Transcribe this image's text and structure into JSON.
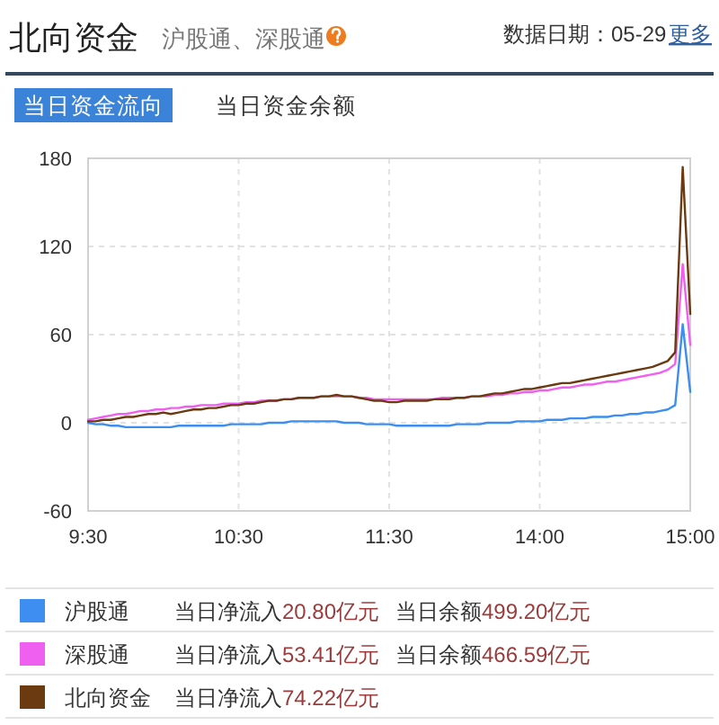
{
  "chart_data": {
    "type": "line",
    "title": "北向资金",
    "subtitle": "沪股通、深股通",
    "categories": [
      "9:30",
      null,
      null,
      null,
      null,
      null,
      null,
      null,
      null,
      null,
      null,
      null,
      null,
      null,
      null,
      null,
      null,
      null,
      null,
      null,
      "10:30",
      null,
      null,
      null,
      null,
      null,
      null,
      null,
      null,
      null,
      null,
      null,
      null,
      null,
      null,
      null,
      null,
      null,
      null,
      null,
      "11:30",
      null,
      null,
      null,
      null,
      null,
      null,
      null,
      null,
      null,
      null,
      null,
      null,
      null,
      null,
      null,
      null,
      null,
      null,
      null,
      "14:00",
      null,
      null,
      null,
      null,
      null,
      null,
      null,
      null,
      null,
      null,
      null,
      null,
      null,
      null,
      null,
      null,
      null,
      null,
      null,
      "15:00"
    ],
    "ylim": [
      -60,
      180
    ],
    "yticks": [
      -60,
      0,
      60,
      120,
      180
    ],
    "grid": true,
    "legend": "bottom",
    "series": [
      {
        "name": "沪股通",
        "color": "#3d8ef0",
        "values": [
          0,
          -1,
          -1,
          -2,
          -2,
          -3,
          -3,
          -3,
          -3,
          -3,
          -3,
          -3,
          -2,
          -2,
          -2,
          -2,
          -2,
          -2,
          -2,
          -1,
          -1,
          -1,
          -1,
          -1,
          0,
          0,
          0,
          1,
          1,
          1,
          1,
          1,
          1,
          1,
          0,
          0,
          0,
          -1,
          -1,
          -1,
          -1,
          -2,
          -2,
          -2,
          -2,
          -2,
          -2,
          -2,
          -2,
          -1,
          -1,
          -1,
          -1,
          0,
          0,
          0,
          0,
          1,
          1,
          1,
          1,
          2,
          2,
          2,
          3,
          3,
          3,
          4,
          4,
          4,
          5,
          5,
          6,
          6,
          7,
          7,
          8,
          9,
          12,
          67,
          21
        ]
      },
      {
        "name": "深股通",
        "color": "#f060f0",
        "values": [
          2,
          3,
          4,
          5,
          6,
          6,
          7,
          8,
          8,
          9,
          9,
          10,
          10,
          11,
          11,
          12,
          12,
          12,
          13,
          13,
          13,
          14,
          14,
          15,
          15,
          15,
          16,
          16,
          17,
          17,
          17,
          18,
          18,
          18,
          18,
          18,
          17,
          17,
          16,
          16,
          16,
          16,
          16,
          16,
          16,
          16,
          16,
          17,
          17,
          17,
          17,
          18,
          18,
          18,
          19,
          19,
          20,
          20,
          21,
          21,
          22,
          22,
          23,
          24,
          24,
          25,
          26,
          26,
          27,
          28,
          28,
          29,
          30,
          31,
          32,
          33,
          34,
          36,
          40,
          108,
          53
        ]
      },
      {
        "name": "北向资金",
        "color": "#6b3a10",
        "values": [
          1,
          1,
          2,
          2,
          3,
          4,
          4,
          5,
          6,
          6,
          7,
          6,
          7,
          8,
          9,
          9,
          10,
          10,
          11,
          12,
          12,
          13,
          13,
          14,
          15,
          15,
          16,
          16,
          17,
          17,
          17,
          18,
          18,
          19,
          18,
          18,
          17,
          16,
          15,
          15,
          14,
          14,
          15,
          15,
          15,
          15,
          16,
          16,
          16,
          17,
          17,
          18,
          18,
          19,
          20,
          20,
          21,
          22,
          23,
          23,
          24,
          25,
          26,
          27,
          27,
          28,
          29,
          30,
          31,
          32,
          33,
          34,
          35,
          36,
          37,
          38,
          40,
          42,
          48,
          174,
          74
        ]
      }
    ],
    "annotations": [
      "数据日期：05-29",
      "更多",
      "当日资金流向",
      "当日资金余额",
      "当日净流入20.80亿元",
      "当日余额499.20亿元",
      "当日净流入53.41亿元",
      "当日余额466.59亿元",
      "当日净流入74.22亿元"
    ]
  }
}
